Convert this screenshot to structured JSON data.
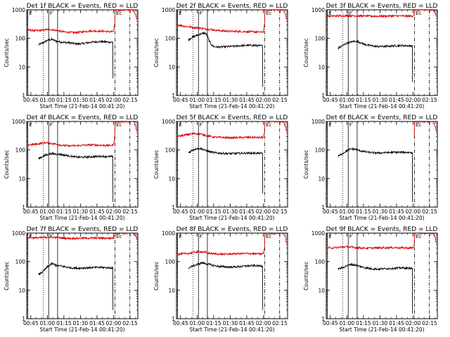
{
  "x_axis": {
    "label": "Start Time (21-Feb-14 00:41:20)",
    "ticks": [
      {
        "t": 45,
        "label": "00:45"
      },
      {
        "t": 60,
        "label": "01:00"
      },
      {
        "t": 75,
        "label": "01:15"
      },
      {
        "t": 90,
        "label": "01:30"
      },
      {
        "t": 105,
        "label": "01:45"
      },
      {
        "t": 120,
        "label": "02:00"
      },
      {
        "t": 135,
        "label": "02:15"
      }
    ],
    "range_minutes_after_midnight": [
      41.3,
      142
    ]
  },
  "y_axis": {
    "label": "Counts/sec",
    "scale": "log",
    "range": [
      1,
      1000
    ],
    "ticks": [
      {
        "v": 1,
        "label": "1"
      },
      {
        "v": 10,
        "label": "10"
      },
      {
        "v": 100,
        "label": "100"
      },
      {
        "v": 1000,
        "label": "1000"
      }
    ]
  },
  "markers": [
    {
      "t": 42.3,
      "style": "solid",
      "label": "E"
    },
    {
      "t": 56.2,
      "style": "dotted",
      "label": ""
    },
    {
      "t": 61.2,
      "style": "solid",
      "label": "F"
    },
    {
      "t": 69.3,
      "style": "solid",
      "label": ""
    },
    {
      "t": 121.3,
      "style": "dash-dot",
      "label": "Ec"
    },
    {
      "t": 134.8,
      "style": "dash-dot",
      "label": ""
    }
  ],
  "series_colors": {
    "events": "#000000",
    "lld": "#dd0000"
  },
  "chart_data": [
    {
      "type": "line",
      "title": "Det 1f BLACK = Events, RED = LLD",
      "series": [
        {
          "name": "Events",
          "x": [
            52,
            56,
            60,
            64,
            68,
            72,
            76,
            80,
            84,
            88,
            92,
            96,
            100,
            104,
            108,
            112,
            116,
            119.3,
            119.5
          ],
          "values": [
            60,
            70,
            85,
            92,
            80,
            75,
            72,
            70,
            66,
            64,
            66,
            70,
            74,
            76,
            77,
            76,
            74,
            74,
            4
          ]
        },
        {
          "name": "LLD",
          "x": [
            42,
            46,
            50,
            54,
            58,
            62,
            66,
            70,
            74,
            78,
            82,
            86,
            90,
            94,
            98,
            102,
            106,
            110,
            114,
            118,
            120,
            121,
            121.5,
            122,
            124,
            130,
            134,
            138,
            140,
            141
          ],
          "values": [
            200,
            190,
            185,
            190,
            200,
            210,
            195,
            185,
            170,
            165,
            160,
            160,
            165,
            175,
            180,
            182,
            180,
            178,
            175,
            170,
            175,
            300,
            1000,
            1000,
            1000,
            1000,
            1000,
            1000,
            700,
            450
          ]
        }
      ]
    },
    {
      "type": "line",
      "title": "Det 2f BLACK = Events, RED = LLD",
      "series": [
        {
          "name": "Events",
          "x": [
            52,
            56,
            60,
            64,
            67,
            69,
            71,
            73,
            75,
            78,
            82,
            86,
            90,
            94,
            98,
            102,
            106,
            110,
            114,
            118,
            119.3,
            119.5
          ],
          "values": [
            90,
            110,
            130,
            145,
            155,
            130,
            80,
            60,
            52,
            50,
            50,
            51,
            52,
            53,
            55,
            56,
            57,
            57,
            56,
            55,
            55,
            2
          ]
        },
        {
          "name": "LLD",
          "x": [
            42,
            46,
            50,
            54,
            58,
            62,
            66,
            70,
            74,
            78,
            82,
            86,
            90,
            94,
            98,
            102,
            106,
            110,
            114,
            118,
            120,
            121,
            121.5,
            122,
            124,
            130,
            134,
            138,
            140,
            141
          ],
          "values": [
            300,
            280,
            260,
            250,
            240,
            230,
            220,
            210,
            200,
            190,
            185,
            180,
            178,
            176,
            175,
            173,
            172,
            170,
            168,
            165,
            170,
            300,
            1000,
            1000,
            1000,
            1000,
            1000,
            1000,
            700,
            450
          ]
        }
      ]
    },
    {
      "type": "line",
      "title": "Det 3f BLACK = Events, RED = LLD",
      "series": [
        {
          "name": "Events",
          "x": [
            52,
            56,
            60,
            64,
            68,
            72,
            76,
            80,
            84,
            88,
            92,
            96,
            100,
            104,
            108,
            112,
            116,
            119.3,
            119.5
          ],
          "values": [
            45,
            55,
            68,
            75,
            80,
            72,
            62,
            57,
            54,
            52,
            52,
            53,
            54,
            55,
            56,
            56,
            55,
            55,
            3
          ]
        },
        {
          "name": "LLD",
          "x": [
            42,
            46,
            50,
            54,
            58,
            62,
            66,
            70,
            74,
            78,
            82,
            86,
            90,
            94,
            98,
            102,
            106,
            110,
            114,
            118,
            120,
            121,
            121.5,
            122,
            124,
            130,
            134,
            138,
            140,
            141
          ],
          "values": [
            600,
            605,
            610,
            615,
            620,
            625,
            620,
            615,
            610,
            605,
            600,
            600,
            602,
            605,
            608,
            610,
            612,
            610,
            605,
            600,
            620,
            700,
            1000,
            1000,
            1000,
            1000,
            1000,
            1000,
            800,
            600
          ]
        }
      ]
    },
    {
      "type": "line",
      "title": "Det 4f BLACK = Events, RED = LLD",
      "series": [
        {
          "name": "Events",
          "x": [
            52,
            56,
            60,
            64,
            68,
            72,
            76,
            80,
            84,
            88,
            92,
            96,
            100,
            104,
            108,
            112,
            116,
            119.3,
            119.5
          ],
          "values": [
            50,
            60,
            70,
            75,
            72,
            70,
            66,
            62,
            58,
            56,
            56,
            57,
            58,
            59,
            60,
            60,
            59,
            59,
            1.5
          ]
        },
        {
          "name": "LLD",
          "x": [
            42,
            46,
            50,
            54,
            58,
            62,
            66,
            70,
            74,
            78,
            82,
            86,
            90,
            94,
            98,
            102,
            106,
            110,
            114,
            118,
            120,
            121,
            121.5,
            122,
            124,
            130,
            134,
            138,
            140,
            141
          ],
          "values": [
            150,
            155,
            160,
            170,
            180,
            175,
            165,
            155,
            145,
            140,
            140,
            142,
            145,
            148,
            150,
            150,
            148,
            146,
            145,
            145,
            150,
            300,
            1000,
            1000,
            1000,
            1000,
            1000,
            1000,
            700,
            450
          ]
        }
      ]
    },
    {
      "type": "line",
      "title": "Det 5f BLACK = Events, RED = LLD",
      "series": [
        {
          "name": "Events",
          "x": [
            52,
            56,
            60,
            64,
            68,
            72,
            76,
            80,
            84,
            88,
            92,
            96,
            100,
            104,
            108,
            112,
            116,
            119.3,
            119.5
          ],
          "values": [
            80,
            100,
            115,
            110,
            95,
            85,
            80,
            78,
            76,
            75,
            75,
            76,
            77,
            78,
            78,
            78,
            77,
            76,
            3
          ]
        },
        {
          "name": "LLD",
          "x": [
            42,
            46,
            50,
            54,
            58,
            62,
            66,
            70,
            74,
            78,
            82,
            86,
            90,
            94,
            98,
            102,
            106,
            110,
            114,
            118,
            120,
            121,
            121.5,
            122,
            124,
            130,
            134,
            138,
            140,
            141
          ],
          "values": [
            300,
            320,
            340,
            360,
            380,
            370,
            340,
            310,
            290,
            280,
            275,
            272,
            270,
            270,
            272,
            275,
            278,
            278,
            275,
            272,
            280,
            400,
            1000,
            1000,
            1000,
            1000,
            1000,
            1000,
            700,
            450
          ]
        }
      ]
    },
    {
      "type": "line",
      "title": "Det 6f BLACK = Events, RED = LLD",
      "series": [
        {
          "name": "Events",
          "x": [
            52,
            56,
            60,
            64,
            68,
            72,
            76,
            80,
            84,
            88,
            92,
            96,
            100,
            104,
            108,
            112,
            116,
            119.3,
            119.5
          ],
          "values": [
            60,
            75,
            95,
            110,
            105,
            95,
            88,
            82,
            80,
            79,
            80,
            81,
            82,
            83,
            83,
            83,
            82,
            82,
            1.5
          ]
        },
        {
          "name": "LLD",
          "x": [
            121,
            121.5,
            122,
            124,
            130,
            134,
            138,
            140,
            141
          ],
          "values": [
            300,
            1000,
            1000,
            1000,
            1000,
            1000,
            1000,
            700,
            450
          ]
        }
      ]
    },
    {
      "type": "line",
      "title": "Det 7f BLACK = Events, RED = LLD",
      "series": [
        {
          "name": "Events",
          "x": [
            52,
            56,
            60,
            64,
            68,
            72,
            76,
            80,
            84,
            88,
            92,
            96,
            100,
            104,
            108,
            112,
            116,
            119.3,
            119.5
          ],
          "values": [
            35,
            45,
            65,
            85,
            75,
            70,
            66,
            62,
            60,
            59,
            60,
            61,
            62,
            62,
            63,
            62,
            61,
            60,
            2
          ]
        },
        {
          "name": "LLD",
          "x": [
            42,
            46,
            50,
            54,
            58,
            62,
            66,
            70,
            74,
            78,
            82,
            86,
            90,
            94,
            98,
            102,
            106,
            110,
            114,
            118,
            120,
            121,
            121.5,
            122,
            124,
            130,
            134,
            138,
            140,
            141
          ],
          "values": [
            700,
            690,
            680,
            690,
            700,
            720,
            710,
            690,
            670,
            660,
            650,
            655,
            660,
            665,
            668,
            670,
            670,
            668,
            665,
            660,
            680,
            750,
            1000,
            1000,
            1000,
            1000,
            1000,
            1000,
            800,
            600
          ]
        }
      ]
    },
    {
      "type": "line",
      "title": "Det 8f BLACK = Events, RED = LLD",
      "series": [
        {
          "name": "Events",
          "x": [
            52,
            56,
            60,
            64,
            68,
            72,
            76,
            80,
            84,
            88,
            92,
            96,
            100,
            104,
            108,
            112,
            116,
            119.3,
            119.5
          ],
          "values": [
            60,
            70,
            80,
            90,
            85,
            78,
            72,
            68,
            66,
            65,
            65,
            66,
            68,
            70,
            72,
            72,
            71,
            70,
            2
          ]
        },
        {
          "name": "LLD",
          "x": [
            42,
            46,
            50,
            54,
            58,
            62,
            66,
            70,
            74,
            78,
            82,
            86,
            90,
            94,
            98,
            102,
            106,
            110,
            114,
            118,
            120,
            121,
            121.5,
            122,
            124,
            130,
            134,
            138,
            140,
            141
          ],
          "values": [
            180,
            185,
            190,
            200,
            215,
            225,
            215,
            200,
            190,
            185,
            182,
            182,
            185,
            188,
            190,
            192,
            192,
            190,
            188,
            186,
            195,
            300,
            1000,
            1000,
            1000,
            1000,
            1000,
            1000,
            700,
            450
          ]
        }
      ]
    },
    {
      "type": "line",
      "title": "Det 9f BLACK = Events, RED = LLD",
      "series": [
        {
          "name": "Events",
          "x": [
            52,
            56,
            60,
            64,
            68,
            72,
            76,
            80,
            84,
            88,
            92,
            96,
            100,
            104,
            108,
            112,
            116,
            119.3,
            119.5
          ],
          "values": [
            55,
            62,
            72,
            80,
            75,
            68,
            62,
            58,
            56,
            55,
            56,
            57,
            58,
            59,
            60,
            60,
            59,
            59,
            1.5
          ]
        },
        {
          "name": "LLD",
          "x": [
            42,
            46,
            50,
            54,
            58,
            62,
            66,
            70,
            74,
            78,
            82,
            86,
            90,
            94,
            98,
            102,
            106,
            110,
            114,
            118,
            120,
            121,
            121.5,
            122,
            124,
            130,
            134,
            138,
            140,
            141
          ],
          "values": [
            300,
            305,
            310,
            320,
            330,
            325,
            315,
            305,
            300,
            298,
            300,
            302,
            305,
            308,
            310,
            310,
            308,
            305,
            302,
            300,
            310,
            400,
            1000,
            1000,
            1000,
            1000,
            1000,
            1000,
            700,
            450
          ]
        }
      ]
    }
  ]
}
